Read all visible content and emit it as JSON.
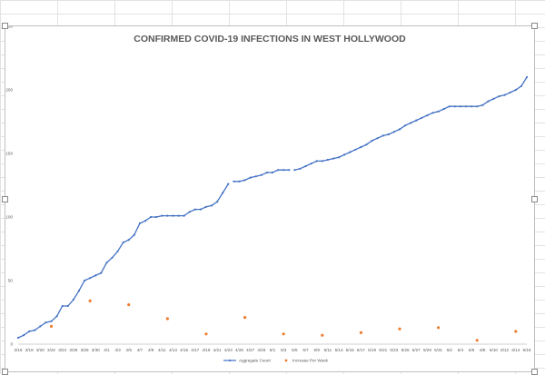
{
  "chart_data": {
    "type": "line",
    "title": "CONFIRMED COVID-19 INFECTIONS IN WEST HOLLYWOOD",
    "xlabel": "",
    "ylabel": "",
    "ylim": [
      0,
      250
    ],
    "yticks": [
      0,
      50,
      100,
      150,
      200,
      250
    ],
    "grid": false,
    "legend_position": "bottom",
    "x_tick_labels": [
      "3/16",
      "3/18",
      "3/20",
      "3/22",
      "3/24",
      "3/26",
      "3/28",
      "3/30",
      "4/1",
      "4/3",
      "4/5",
      "4/7",
      "4/9",
      "4/11",
      "4/13",
      "4/15",
      "4/17",
      "4/19",
      "4/21",
      "4/23",
      "4/25",
      "4/27",
      "4/29",
      "5/1",
      "5/3",
      "5/5",
      "5/7",
      "5/9",
      "5/11",
      "5/13",
      "5/15",
      "5/17",
      "5/19",
      "5/21",
      "5/23",
      "5/25",
      "5/27",
      "5/29",
      "5/31",
      "6/2",
      "6/4",
      "6/6",
      "6/8",
      "6/10",
      "6/12",
      "6/14",
      "6/16"
    ],
    "series": [
      {
        "name": "Aggregate Count",
        "color": "#4472c4",
        "type": "line",
        "x": [
          0,
          1,
          2,
          3,
          4,
          5,
          6,
          7,
          8,
          9,
          10,
          11,
          12,
          13,
          14,
          15,
          16,
          17,
          18,
          19,
          20,
          21,
          22,
          23,
          24,
          25,
          26,
          27,
          28,
          29,
          30,
          31,
          32,
          33,
          34,
          35,
          36,
          37,
          38,
          39,
          40,
          41,
          42,
          43,
          44,
          45,
          46,
          47,
          48,
          49,
          50,
          51,
          52,
          53,
          54,
          55,
          56,
          57,
          58,
          59,
          60,
          61,
          62,
          63,
          64,
          65,
          66,
          67,
          68,
          69,
          70,
          71,
          72,
          73,
          74,
          75,
          76,
          77,
          78,
          79,
          80,
          81,
          82,
          83,
          84,
          85,
          86,
          87,
          88,
          89,
          90,
          91,
          92
        ],
        "values": [
          5,
          7,
          10,
          11,
          14,
          17,
          18,
          22,
          30,
          30,
          35,
          42,
          50,
          52,
          54,
          56,
          64,
          68,
          73,
          80,
          82,
          86,
          95,
          97,
          100,
          100,
          101,
          101,
          101,
          101,
          101,
          104,
          106,
          106,
          108,
          109,
          112,
          119,
          126,
          128,
          128,
          129,
          131,
          132,
          133,
          135,
          135,
          137,
          137,
          137,
          137,
          138,
          140,
          142,
          144,
          144,
          145,
          146,
          147,
          149,
          151,
          153,
          155,
          157,
          160,
          162,
          164,
          165,
          167,
          169,
          172,
          174,
          176,
          178,
          180,
          182,
          183,
          185,
          187,
          187,
          187,
          187,
          187,
          187,
          188,
          191,
          193,
          195,
          196,
          198,
          200,
          203,
          210
        ],
        "segment_breaks_after": [
          38,
          49
        ]
      },
      {
        "name": "Increase Per Week",
        "color": "#ed7d31",
        "type": "scatter",
        "x": [
          6,
          13,
          20,
          27,
          34,
          41,
          48,
          55,
          62,
          69,
          76,
          83,
          90
        ],
        "values": [
          14,
          34,
          31,
          20,
          8,
          21,
          8,
          7,
          9,
          12,
          13,
          3,
          10
        ]
      }
    ]
  }
}
